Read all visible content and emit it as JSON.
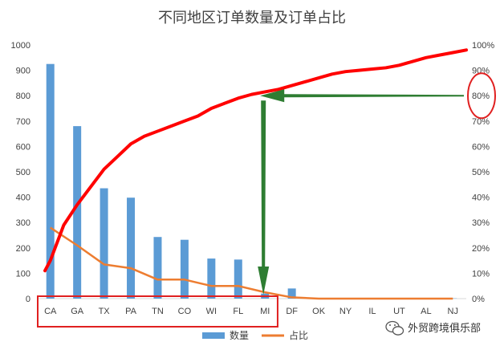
{
  "chart_data": {
    "type": "bar",
    "title": "不同地区订单数量及订单占比",
    "categories": [
      "CA",
      "GA",
      "TX",
      "PA",
      "TN",
      "CO",
      "WI",
      "FL",
      "MI",
      "DF",
      "OK",
      "NY",
      "IL",
      "UT",
      "AL",
      "NJ"
    ],
    "series": [
      {
        "name": "数量",
        "type": "bar",
        "axis": "left",
        "color": "#5b9bd5",
        "values": [
          925,
          680,
          435,
          398,
          243,
          232,
          158,
          154,
          20,
          40,
          1,
          1,
          1,
          1,
          1,
          1
        ]
      },
      {
        "name": "占比",
        "type": "line",
        "axis": "right",
        "color": "#ed7d31",
        "values": [
          28,
          21,
          13.5,
          12,
          7.5,
          7.5,
          5,
          5,
          2.5,
          0.5,
          0,
          0,
          0,
          0,
          0,
          0
        ]
      }
    ],
    "cumulative_line": {
      "color": "#ff0000",
      "axis": "right",
      "x": [
        -0.2,
        0,
        0.5,
        1,
        1.5,
        2,
        2.5,
        3,
        3.5,
        4,
        4.5,
        5,
        5.5,
        6,
        6.5,
        7,
        7.5,
        8,
        8.5,
        9,
        9.5,
        10,
        10.5,
        11,
        11.5,
        12,
        12.5,
        13,
        13.5,
        14,
        14.5,
        15,
        15.5
      ],
      "y": [
        11,
        15,
        29,
        37,
        44,
        51,
        56,
        61,
        64,
        66,
        68,
        70,
        72,
        75,
        77,
        79,
        80.5,
        81.5,
        82.5,
        84,
        85.5,
        87,
        88.5,
        89.5,
        90,
        90.5,
        91,
        92,
        93.5,
        95,
        96,
        97,
        98
      ]
    },
    "y_left": {
      "min": 0,
      "max": 1000,
      "ticks": [
        "0",
        "100",
        "200",
        "300",
        "400",
        "500",
        "600",
        "700",
        "800",
        "900",
        "1000"
      ]
    },
    "y_right": {
      "min": 0,
      "max": 100,
      "ticks": [
        "0%",
        "10%",
        "20%",
        "30%",
        "40%",
        "50%",
        "60%",
        "70%",
        "80%",
        "90%",
        "100%"
      ]
    },
    "grid": false,
    "legend_position": "bottom",
    "annotations": {
      "highlight_box_categories": [
        "CA",
        "MI"
      ],
      "highlight_circle_tick": "80%",
      "arrow_color": "#2e7d32",
      "box_color": "#e02020"
    }
  },
  "watermark": {
    "text": "外贸跨境俱乐部",
    "icon": "wechat-icon"
  }
}
